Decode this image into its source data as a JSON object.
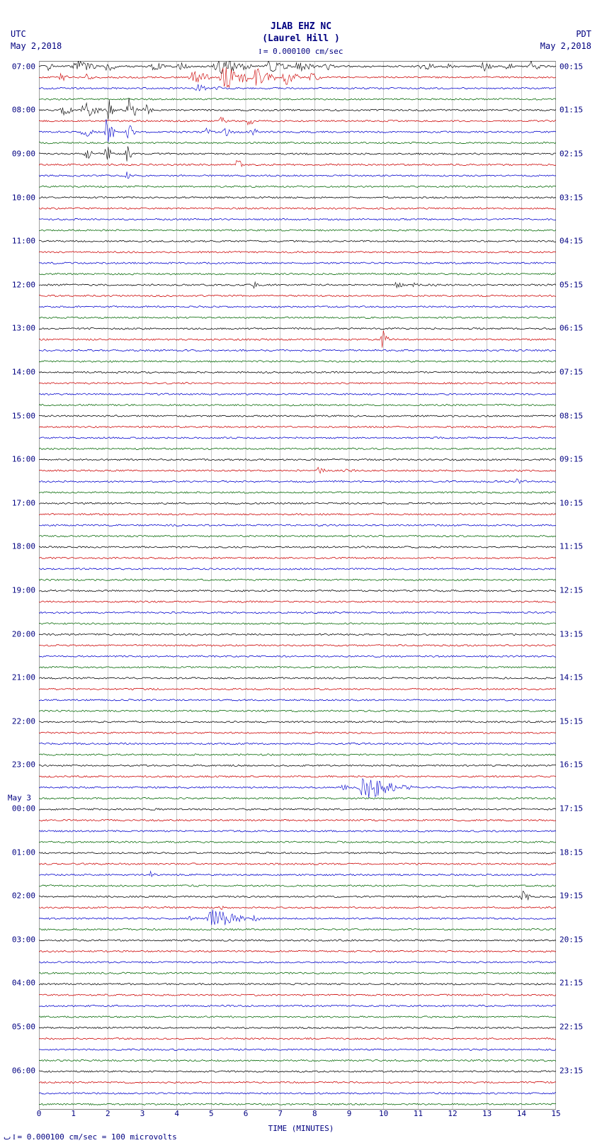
{
  "header": {
    "title_line1": "JLAB EHZ NC",
    "title_line2": "(Laurel Hill )",
    "scale_marker": "= 0.000100 cm/sec"
  },
  "tz_left": {
    "tz": "UTC",
    "date": "May 2,2018"
  },
  "tz_right": {
    "tz": "PDT",
    "date": "May 2,2018"
  },
  "footer": {
    "text": "= 0.000100 cm/sec =    100 microvolts"
  },
  "plot": {
    "background_color": "#ffffff",
    "grid_color": "#808080",
    "text_color": "#000080",
    "trace_colors": [
      "#000000",
      "#cc0000",
      "#0000cc",
      "#006600"
    ],
    "x": {
      "label": "TIME (MINUTES)",
      "min": 0,
      "max": 15,
      "ticks": [
        0,
        1,
        2,
        3,
        4,
        5,
        6,
        7,
        8,
        9,
        10,
        11,
        12,
        13,
        14,
        15
      ]
    },
    "y_left_labels": [
      {
        "t": "07:00",
        "row": 0
      },
      {
        "t": "08:00",
        "row": 4
      },
      {
        "t": "09:00",
        "row": 8
      },
      {
        "t": "10:00",
        "row": 12
      },
      {
        "t": "11:00",
        "row": 16
      },
      {
        "t": "12:00",
        "row": 20
      },
      {
        "t": "13:00",
        "row": 24
      },
      {
        "t": "14:00",
        "row": 28
      },
      {
        "t": "15:00",
        "row": 32
      },
      {
        "t": "16:00",
        "row": 36
      },
      {
        "t": "17:00",
        "row": 40
      },
      {
        "t": "18:00",
        "row": 44
      },
      {
        "t": "19:00",
        "row": 48
      },
      {
        "t": "20:00",
        "row": 52
      },
      {
        "t": "21:00",
        "row": 56
      },
      {
        "t": "22:00",
        "row": 60
      },
      {
        "t": "23:00",
        "row": 64
      },
      {
        "t": "May 3",
        "row": 67,
        "x": -6
      },
      {
        "t": "00:00",
        "row": 68
      },
      {
        "t": "01:00",
        "row": 72
      },
      {
        "t": "02:00",
        "row": 76
      },
      {
        "t": "03:00",
        "row": 80
      },
      {
        "t": "04:00",
        "row": 84
      },
      {
        "t": "05:00",
        "row": 88
      },
      {
        "t": "06:00",
        "row": 92
      }
    ],
    "y_right_labels": [
      {
        "t": "00:15",
        "row": 0
      },
      {
        "t": "01:15",
        "row": 4
      },
      {
        "t": "02:15",
        "row": 8
      },
      {
        "t": "03:15",
        "row": 12
      },
      {
        "t": "04:15",
        "row": 16
      },
      {
        "t": "05:15",
        "row": 20
      },
      {
        "t": "06:15",
        "row": 24
      },
      {
        "t": "07:15",
        "row": 28
      },
      {
        "t": "08:15",
        "row": 32
      },
      {
        "t": "09:15",
        "row": 36
      },
      {
        "t": "10:15",
        "row": 40
      },
      {
        "t": "11:15",
        "row": 44
      },
      {
        "t": "12:15",
        "row": 48
      },
      {
        "t": "13:15",
        "row": 52
      },
      {
        "t": "14:15",
        "row": 56
      },
      {
        "t": "15:15",
        "row": 60
      },
      {
        "t": "16:15",
        "row": 64
      },
      {
        "t": "17:15",
        "row": 68
      },
      {
        "t": "18:15",
        "row": 72
      },
      {
        "t": "19:15",
        "row": 76
      },
      {
        "t": "20:15",
        "row": 80
      },
      {
        "t": "21:15",
        "row": 84
      },
      {
        "t": "22:15",
        "row": 88
      },
      {
        "t": "23:15",
        "row": 92
      }
    ],
    "rows": 96,
    "row_height": 15.4,
    "events": [
      {
        "row": 0,
        "color": 0,
        "bursts": [
          {
            "x": 0.2,
            "w": 0.3,
            "amp": 8
          },
          {
            "x": 0.9,
            "w": 0.8,
            "amp": 10
          },
          {
            "x": 1.9,
            "w": 0.4,
            "amp": 9
          },
          {
            "x": 3.2,
            "w": 0.5,
            "amp": 7
          },
          {
            "x": 4.0,
            "w": 0.4,
            "amp": 8
          },
          {
            "x": 5.0,
            "w": 1.2,
            "amp": 12
          },
          {
            "x": 6.5,
            "w": 0.8,
            "amp": 9
          },
          {
            "x": 7.4,
            "w": 0.6,
            "amp": 10
          },
          {
            "x": 8.2,
            "w": 0.4,
            "amp": 7
          },
          {
            "x": 11.0,
            "w": 0.5,
            "amp": 9
          },
          {
            "x": 11.8,
            "w": 0.3,
            "amp": 6
          },
          {
            "x": 12.8,
            "w": 0.4,
            "amp": 8
          },
          {
            "x": 13.5,
            "w": 0.3,
            "amp": 7
          },
          {
            "x": 14.2,
            "w": 0.4,
            "amp": 8
          }
        ]
      },
      {
        "row": 1,
        "color": 1,
        "bursts": [
          {
            "x": 0.5,
            "w": 0.4,
            "amp": 7
          },
          {
            "x": 1.3,
            "w": 0.3,
            "amp": 6
          },
          {
            "x": 4.3,
            "w": 0.8,
            "amp": 9
          },
          {
            "x": 5.2,
            "w": 1.0,
            "amp": 18
          },
          {
            "x": 6.1,
            "w": 0.8,
            "amp": 15
          },
          {
            "x": 7.0,
            "w": 0.6,
            "amp": 12
          },
          {
            "x": 7.8,
            "w": 0.4,
            "amp": 8
          }
        ]
      },
      {
        "row": 2,
        "color": 2,
        "bursts": [
          {
            "x": 4.5,
            "w": 0.4,
            "amp": 7
          },
          {
            "x": 5.0,
            "w": 0.3,
            "amp": 6
          }
        ]
      },
      {
        "row": 4,
        "color": 0,
        "bursts": [
          {
            "x": 0.6,
            "w": 0.4,
            "amp": 9
          },
          {
            "x": 1.2,
            "w": 0.6,
            "amp": 14
          },
          {
            "x": 1.9,
            "w": 0.4,
            "amp": 18
          },
          {
            "x": 2.5,
            "w": 0.4,
            "amp": 20
          },
          {
            "x": 3.0,
            "w": 0.3,
            "amp": 12
          }
        ]
      },
      {
        "row": 5,
        "color": 1,
        "bursts": [
          {
            "x": 5.2,
            "w": 0.3,
            "amp": 8
          },
          {
            "x": 6.0,
            "w": 0.3,
            "amp": 7
          }
        ]
      },
      {
        "row": 6,
        "color": 2,
        "bursts": [
          {
            "x": 1.2,
            "w": 0.4,
            "amp": 10
          },
          {
            "x": 1.9,
            "w": 0.3,
            "amp": 22
          },
          {
            "x": 2.5,
            "w": 0.3,
            "amp": 14
          },
          {
            "x": 4.8,
            "w": 0.3,
            "amp": 6
          },
          {
            "x": 5.3,
            "w": 0.4,
            "amp": 8
          },
          {
            "x": 6.1,
            "w": 0.3,
            "amp": 7
          }
        ]
      },
      {
        "row": 8,
        "color": 0,
        "bursts": [
          {
            "x": 1.3,
            "w": 0.3,
            "amp": 9
          },
          {
            "x": 1.9,
            "w": 0.2,
            "amp": 18
          },
          {
            "x": 2.5,
            "w": 0.2,
            "amp": 14
          }
        ]
      },
      {
        "row": 9,
        "color": 1,
        "bursts": [
          {
            "x": 5.7,
            "w": 0.2,
            "amp": 10
          }
        ]
      },
      {
        "row": 10,
        "color": 2,
        "bursts": [
          {
            "x": 2.5,
            "w": 0.2,
            "amp": 7
          }
        ]
      },
      {
        "row": 20,
        "color": 0,
        "bursts": [
          {
            "x": 6.2,
            "w": 0.2,
            "amp": 5
          },
          {
            "x": 10.3,
            "w": 0.3,
            "amp": 7
          },
          {
            "x": 10.8,
            "w": 0.2,
            "amp": 6
          },
          {
            "x": 11.4,
            "w": 0.2,
            "amp": 5
          }
        ]
      },
      {
        "row": 25,
        "color": 1,
        "bursts": [
          {
            "x": 9.9,
            "w": 0.3,
            "amp": 14
          }
        ]
      },
      {
        "row": 37,
        "color": 1,
        "bursts": [
          {
            "x": 8.0,
            "w": 0.4,
            "amp": 5
          },
          {
            "x": 8.8,
            "w": 0.4,
            "amp": 6
          }
        ]
      },
      {
        "row": 38,
        "color": 2,
        "bursts": [
          {
            "x": 13.8,
            "w": 0.4,
            "amp": 6
          }
        ]
      },
      {
        "row": 66,
        "color": 2,
        "bursts": [
          {
            "x": 8.7,
            "w": 0.3,
            "amp": 6
          },
          {
            "x": 9.2,
            "w": 1.2,
            "amp": 18
          },
          {
            "x": 10.5,
            "w": 0.4,
            "amp": 6
          }
        ]
      },
      {
        "row": 74,
        "color": 2,
        "bursts": [
          {
            "x": 3.2,
            "w": 0.2,
            "amp": 7
          }
        ]
      },
      {
        "row": 77,
        "color": 1,
        "bursts": [
          {
            "x": 5.2,
            "w": 0.2,
            "amp": 5
          }
        ]
      },
      {
        "row": 76,
        "color": 0,
        "bursts": [
          {
            "x": 13.9,
            "w": 0.4,
            "amp": 10
          }
        ]
      },
      {
        "row": 78,
        "color": 2,
        "bursts": [
          {
            "x": 4.3,
            "w": 0.3,
            "amp": 5
          },
          {
            "x": 4.8,
            "w": 1.2,
            "amp": 14
          },
          {
            "x": 6.1,
            "w": 0.4,
            "amp": 5
          }
        ]
      }
    ]
  }
}
